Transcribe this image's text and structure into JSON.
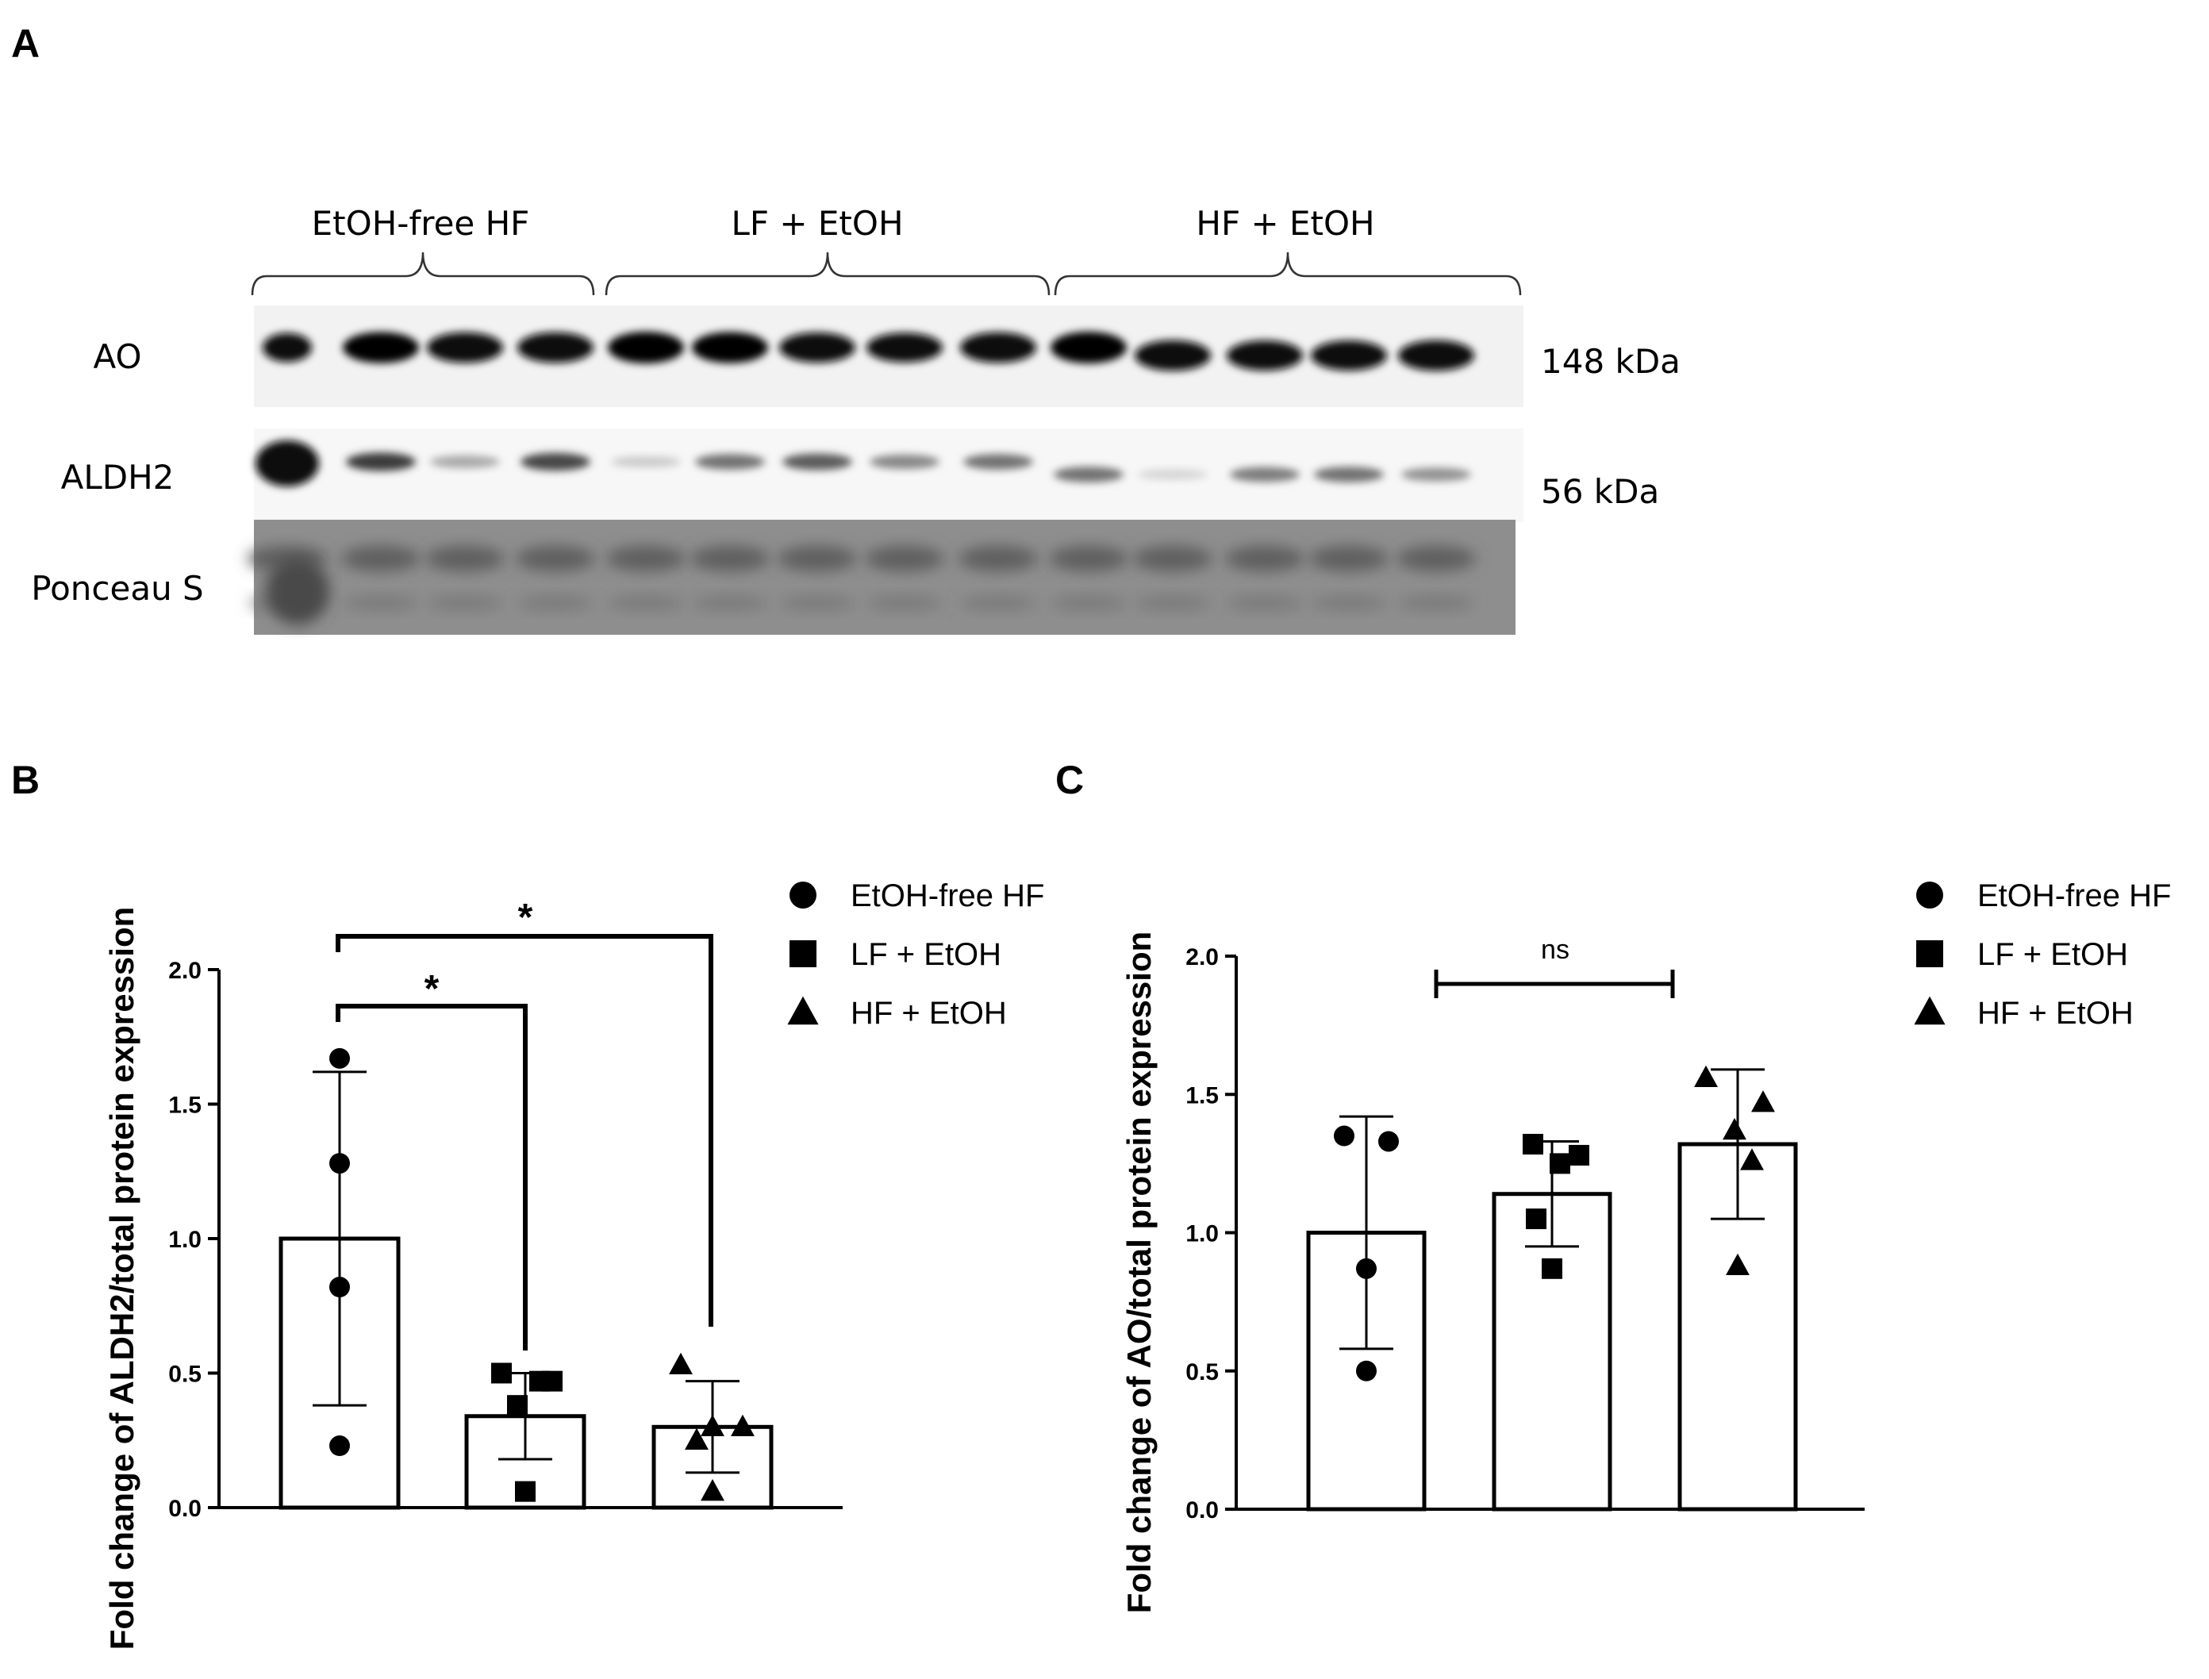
{
  "panels": {
    "a": "A",
    "b": "B",
    "c": "C"
  },
  "blot": {
    "groups": [
      "EtOH-free HF",
      "LF + EtOH",
      "HF + EtOH"
    ],
    "rows": [
      "AO",
      "ALDH2",
      "Ponceau S"
    ],
    "markers": [
      "148 kDa",
      "56 kDa"
    ],
    "lanes": [
      4,
      5,
      5
    ],
    "ao_intensity": [
      0.75,
      0.95,
      0.9,
      0.9,
      1.0,
      0.95,
      0.85,
      0.8,
      0.9,
      1.0,
      0.9,
      0.85,
      0.85,
      0.9
    ],
    "aldh2_intensity": [
      1.0,
      0.8,
      0.3,
      0.75,
      0.15,
      0.55,
      0.65,
      0.45,
      0.55,
      0.55,
      0.1,
      0.5,
      0.55,
      0.4
    ]
  },
  "chart_data": [
    {
      "type": "bar",
      "panel": "B",
      "categories": [
        "EtOH-free HF",
        "LF + EtOH",
        "HF + EtOH"
      ],
      "values": [
        1.0,
        0.34,
        0.3
      ],
      "errors": [
        0.62,
        0.16,
        0.17
      ],
      "points": [
        [
          1.67,
          1.28,
          0.82,
          0.23
        ],
        [
          0.5,
          0.47,
          0.47,
          0.38,
          0.06
        ],
        [
          0.53,
          0.3,
          0.3,
          0.25,
          0.06
        ]
      ],
      "markers": [
        "circle",
        "square",
        "triangle"
      ],
      "ylabel": "Fold change of ALDH2/total protein expression",
      "ylim": [
        0,
        2.0
      ],
      "yticks": [
        "0.0",
        "0.5",
        "1.0",
        "1.5",
        "2.0"
      ],
      "significance": [
        {
          "from": 0,
          "to": 1,
          "label": "*"
        },
        {
          "from": 0,
          "to": 2,
          "label": "*"
        }
      ],
      "legend": [
        "EtOH-free HF",
        "LF + EtOH",
        "HF + EtOH"
      ],
      "legend_position": "top-right",
      "grid": false
    },
    {
      "type": "bar",
      "panel": "C",
      "categories": [
        "EtOH-free HF",
        "LF + EtOH",
        "HF + EtOH"
      ],
      "values": [
        1.0,
        1.14,
        1.32
      ],
      "errors": [
        0.42,
        0.19,
        0.27
      ],
      "points": [
        [
          1.35,
          1.33,
          0.87,
          0.5
        ],
        [
          1.32,
          1.28,
          1.25,
          1.05,
          0.87
        ],
        [
          1.56,
          1.47,
          1.37,
          1.26,
          0.88
        ]
      ],
      "markers": [
        "circle",
        "square",
        "triangle"
      ],
      "ylabel": "Fold change of AO/total protein expression",
      "ylim": [
        0,
        2.0
      ],
      "yticks": [
        "0.0",
        "0.5",
        "1.0",
        "1.5",
        "2.0"
      ],
      "significance": [
        {
          "from": 0.3,
          "to": 1.6,
          "label": "ns"
        }
      ],
      "legend": [
        "EtOH-free HF",
        "LF + EtOH",
        "HF + EtOH"
      ],
      "legend_position": "top-right",
      "grid": false
    }
  ]
}
